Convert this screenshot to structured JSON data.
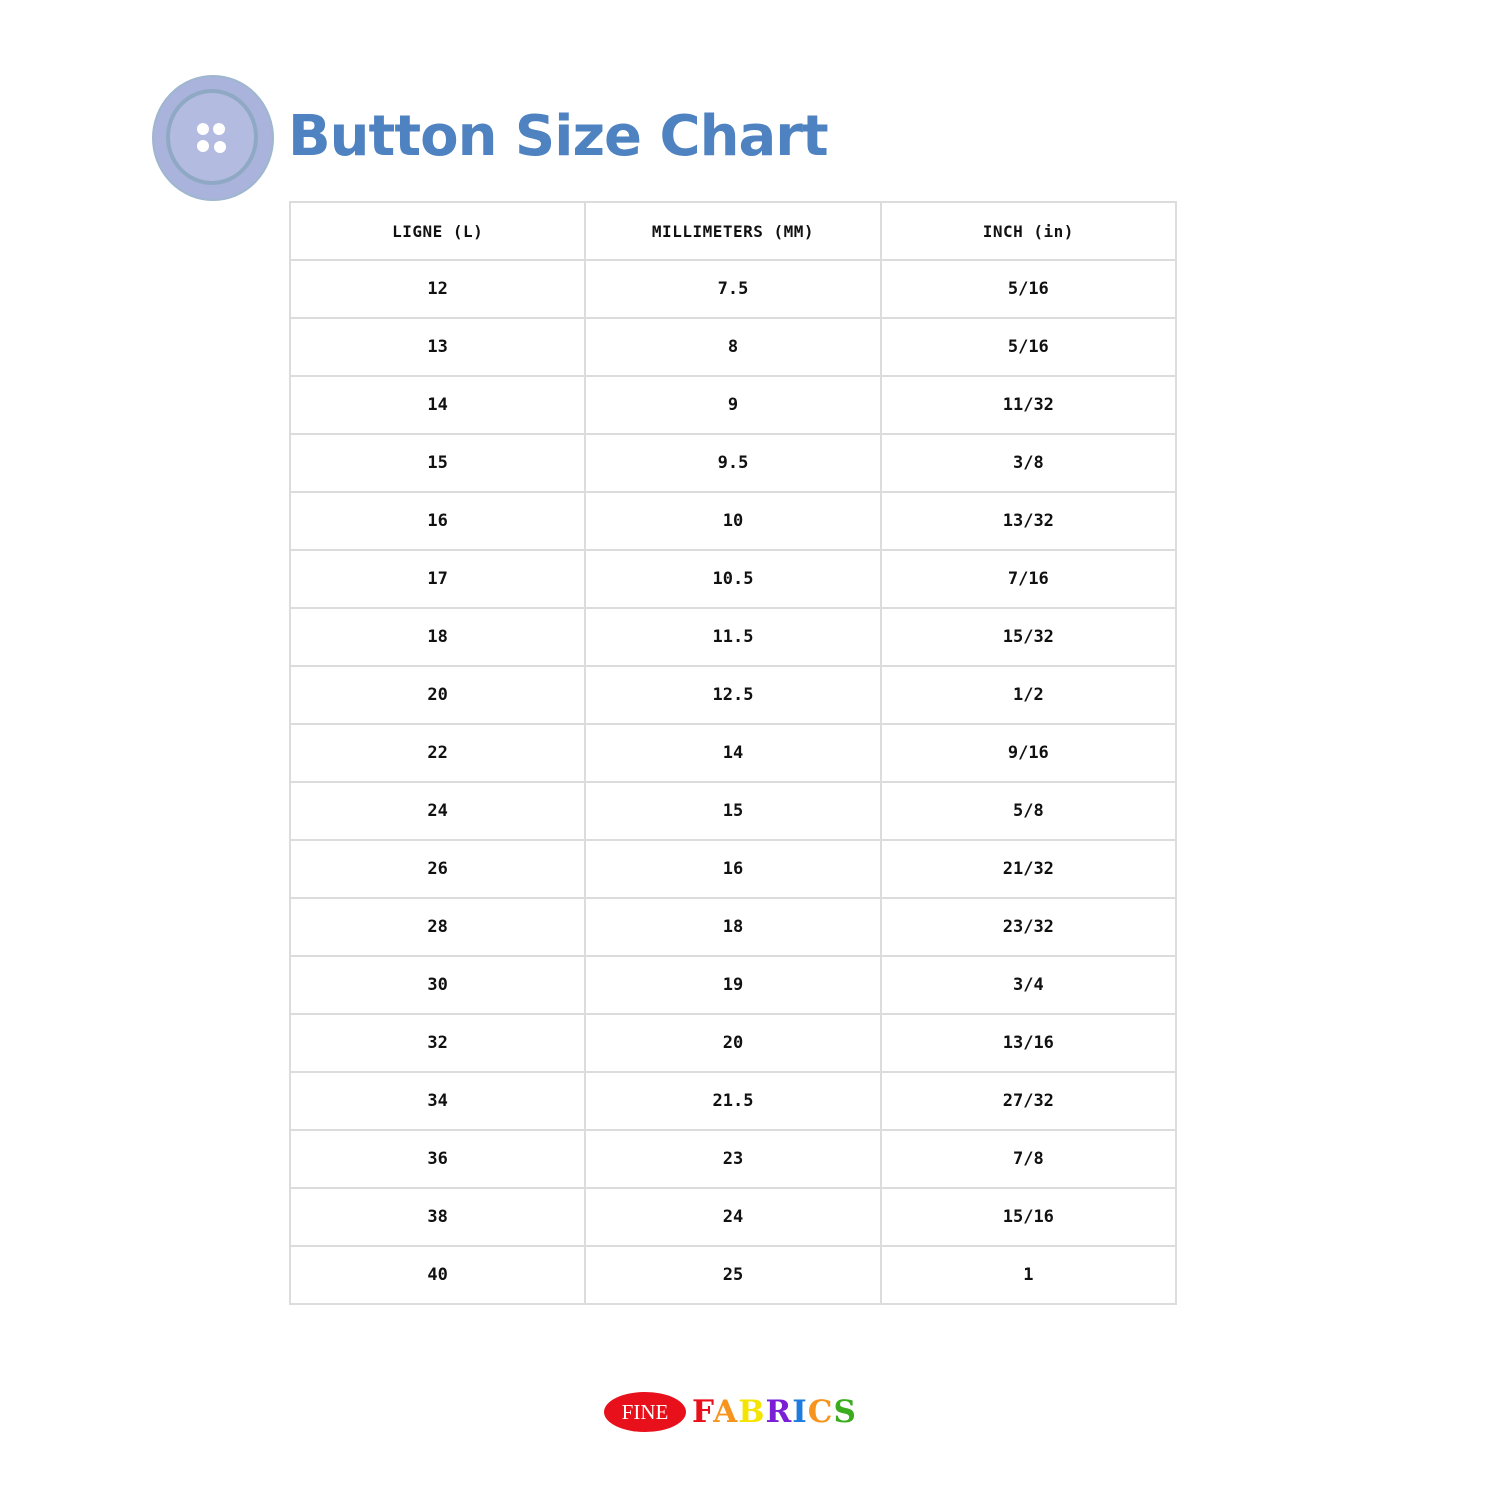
{
  "header": {
    "title": "Button Size Chart",
    "icon": "button-icon"
  },
  "table": {
    "columns": [
      "LIGNE (L)",
      "MILLIMETERS (MM)",
      "INCH (in)"
    ],
    "rows": [
      [
        "12",
        "7.5",
        "5/16"
      ],
      [
        "13",
        "8",
        "5/16"
      ],
      [
        "14",
        "9",
        "11/32"
      ],
      [
        "15",
        "9.5",
        "3/8"
      ],
      [
        "16",
        "10",
        "13/32"
      ],
      [
        "17",
        "10.5",
        "7/16"
      ],
      [
        "18",
        "11.5",
        "15/32"
      ],
      [
        "20",
        "12.5",
        "1/2"
      ],
      [
        "22",
        "14",
        "9/16"
      ],
      [
        "24",
        "15",
        "5/8"
      ],
      [
        "26",
        "16",
        "21/32"
      ],
      [
        "28",
        "18",
        "23/32"
      ],
      [
        "30",
        "19",
        "3/4"
      ],
      [
        "32",
        "20",
        "13/16"
      ],
      [
        "34",
        "21.5",
        "27/32"
      ],
      [
        "36",
        "23",
        "7/8"
      ],
      [
        "38",
        "24",
        "15/16"
      ],
      [
        "40",
        "25",
        "1"
      ]
    ]
  },
  "logo": {
    "fine": "FINE",
    "fabrics_letters": [
      {
        "ch": "F",
        "color": "#e8101a"
      },
      {
        "ch": "A",
        "color": "#f7941d"
      },
      {
        "ch": "B",
        "color": "#f5e400"
      },
      {
        "ch": "R",
        "color": "#7a1fd6"
      },
      {
        "ch": "I",
        "color": "#1e7be0"
      },
      {
        "ch": "C",
        "color": "#f7941d"
      },
      {
        "ch": "S",
        "color": "#3aac1e"
      }
    ]
  },
  "colors": {
    "title": "#4f82c0",
    "button": "#a9b4dc",
    "border": "#dcdcdc"
  }
}
